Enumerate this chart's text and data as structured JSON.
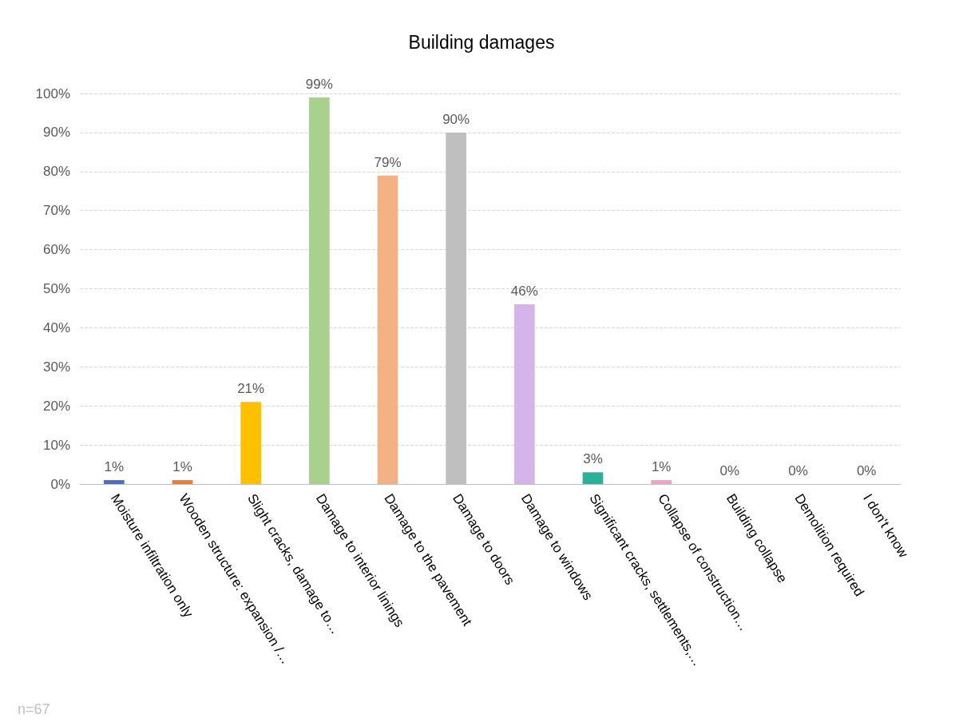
{
  "chart_data": {
    "type": "bar",
    "title": "Building damages",
    "categories": [
      "Moisture infiltration only",
      "Wooden structure: expansion /…",
      "Slight cracks, damage to…",
      "Damage to interior linings",
      "Damage to the pavement",
      "Damage to doors",
      "Damage to windows",
      "Significant cracks, settlements,…",
      "Collapse of construction…",
      "Building collapse",
      "Demolition required",
      "I don't know"
    ],
    "values": [
      1,
      1,
      21,
      99,
      79,
      90,
      46,
      3,
      1,
      0,
      0,
      0
    ],
    "colors": [
      "#4472c4",
      "#ed7d31",
      "#ffc000",
      "#a9d18e",
      "#f4b183",
      "#bfbfbf",
      "#d5b4ea",
      "#2ab09b",
      "#f2a0c8",
      "#9dc3e6",
      "#c9c9c9",
      "#ffd966"
    ],
    "value_labels": [
      "1%",
      "1%",
      "21%",
      "99%",
      "79%",
      "90%",
      "46%",
      "3%",
      "1%",
      "0%",
      "0%",
      "0%"
    ],
    "ylim": [
      0,
      100
    ],
    "yticks": [
      {
        "value": 0,
        "label": "0%"
      },
      {
        "value": 10,
        "label": "10%"
      },
      {
        "value": 20,
        "label": "20%"
      },
      {
        "value": 30,
        "label": "30%"
      },
      {
        "value": 40,
        "label": "40%"
      },
      {
        "value": 50,
        "label": "50%"
      },
      {
        "value": 60,
        "label": "60%"
      },
      {
        "value": 70,
        "label": "70%"
      },
      {
        "value": 80,
        "label": "80%"
      },
      {
        "value": 90,
        "label": "90%"
      },
      {
        "value": 100,
        "label": "100%"
      }
    ],
    "grid": "y",
    "annotations": [
      "n=67"
    ]
  }
}
